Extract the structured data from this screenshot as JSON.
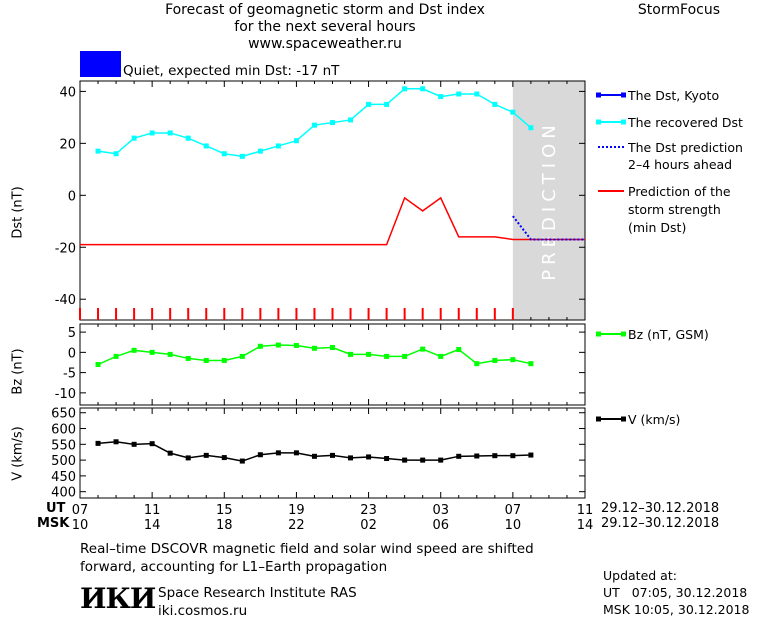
{
  "header": {
    "title_lines": [
      "Forecast of geomagnetic storm and Dst index",
      "for the next several hours",
      "www.spaceweather.ru"
    ],
    "brand": "StormFocus",
    "status": "Quiet, expected min Dst: -17 nT",
    "status_color": "#0000ff"
  },
  "legend": {
    "dst_kyoto": "The Dst, Kyoto",
    "recovered": "The recovered Dst",
    "prediction_1": "The Dst prediction",
    "prediction_2": "2–4 hours ahead",
    "storm_1": "Prediction of the",
    "storm_2": "storm strength",
    "storm_3": "(min Dst)",
    "bz": "Bz (nT, GSM)",
    "v": "V (km/s)"
  },
  "axes": {
    "ut_label": "UT",
    "msk_label": "MSK",
    "ut_ticks": [
      "07",
      "11",
      "15",
      "19",
      "23",
      "03",
      "07",
      "11"
    ],
    "msk_ticks": [
      "10",
      "14",
      "18",
      "22",
      "02",
      "06",
      "10",
      "14"
    ],
    "ut_last": "11",
    "date_range_ut": "29.12–30.12.2018",
    "date_range_msk": "29.12–30.12.2018",
    "dst_ylabel": "Dst (nT)",
    "bz_ylabel": "Bz (nT)",
    "v_ylabel": "V (km/s)",
    "prediction_word": "PREDICTION"
  },
  "footer": {
    "note_line1": "Real–time DSCOVR magnetic field and solar wind speed are shifted",
    "note_line2": "forward, accounting for L1–Earth propagation",
    "logo": "ИКИ",
    "institute": "Space Research Institute RAS",
    "site": "iki.cosmos.ru",
    "updated_label": "Updated at:",
    "updated_ut": "UT   07:05, 30.12.2018",
    "updated_msk": "MSK 10:05, 30.12.2018"
  },
  "colors": {
    "recovered": "#00ffff",
    "kyoto": "#0000ff",
    "storm": "#ff0000",
    "bz": "#00ff00",
    "v": "#000000",
    "prediction_band": "#d9d9d9"
  },
  "chart_data": [
    {
      "type": "line",
      "panel": "dst",
      "ylabel": "Dst (nT)",
      "ylim": [
        -48,
        44
      ],
      "yticks": [
        40,
        20,
        0,
        -20,
        -40
      ],
      "xlim_hours": [
        0,
        28
      ],
      "prediction_start_hour": 24,
      "series": [
        {
          "name": "The recovered Dst",
          "x": [
            1,
            2,
            3,
            4,
            5,
            6,
            7,
            8,
            9,
            10,
            11,
            12,
            13,
            14,
            15,
            16,
            17,
            18,
            19,
            20,
            21,
            22,
            23,
            24,
            25
          ],
          "y": [
            17,
            16,
            22,
            24,
            24,
            22,
            19,
            16,
            15,
            17,
            19,
            21,
            27,
            28,
            29,
            35,
            35,
            41,
            41,
            38,
            39,
            39,
            35,
            32,
            26
          ]
        },
        {
          "name": "Prediction of the storm strength (min Dst)",
          "x": [
            0,
            17,
            18,
            19,
            20,
            21,
            22,
            23,
            24,
            25,
            26,
            27,
            28
          ],
          "y": [
            -19,
            -19,
            -1,
            -6,
            -1,
            -16,
            -16,
            -16,
            -17,
            -17,
            -17,
            -17,
            -17
          ]
        },
        {
          "name": "The Dst prediction 2–4 hours ahead",
          "x": [
            24,
            25,
            26,
            27,
            28
          ],
          "y": [
            -8,
            -17,
            -17,
            -17,
            -17
          ]
        }
      ]
    },
    {
      "type": "line",
      "panel": "bz",
      "ylabel": "Bz (nT)",
      "ylim": [
        -13,
        7
      ],
      "yticks": [
        5,
        0,
        -5,
        -10
      ],
      "series": [
        {
          "name": "Bz (nT, GSM)",
          "x": [
            1,
            2,
            3,
            4,
            5,
            6,
            7,
            8,
            9,
            10,
            11,
            12,
            13,
            14,
            15,
            16,
            17,
            18,
            19,
            20,
            21,
            22,
            23,
            24,
            25
          ],
          "y": [
            -3,
            -1,
            0.5,
            0,
            -0.5,
            -1.5,
            -2,
            -2,
            -1,
            1.5,
            1.8,
            1.7,
            1,
            1.2,
            -0.5,
            -0.5,
            -1,
            -1,
            0.8,
            -1,
            0.7,
            -2.8,
            -2,
            -1.8,
            -2.8
          ]
        }
      ]
    },
    {
      "type": "line",
      "panel": "v",
      "ylabel": "V (km/s)",
      "ylim": [
        380,
        665
      ],
      "yticks": [
        650,
        600,
        550,
        500,
        450,
        400
      ],
      "series": [
        {
          "name": "V (km/s)",
          "x": [
            1,
            2,
            3,
            4,
            5,
            6,
            7,
            8,
            9,
            10,
            11,
            12,
            13,
            14,
            15,
            16,
            17,
            18,
            19,
            20,
            21,
            22,
            23,
            24,
            25
          ],
          "y": [
            553,
            558,
            550,
            552,
            522,
            507,
            515,
            508,
            497,
            517,
            523,
            523,
            512,
            515,
            507,
            510,
            505,
            500,
            500,
            500,
            512,
            513,
            514,
            514,
            516
          ]
        }
      ]
    }
  ]
}
